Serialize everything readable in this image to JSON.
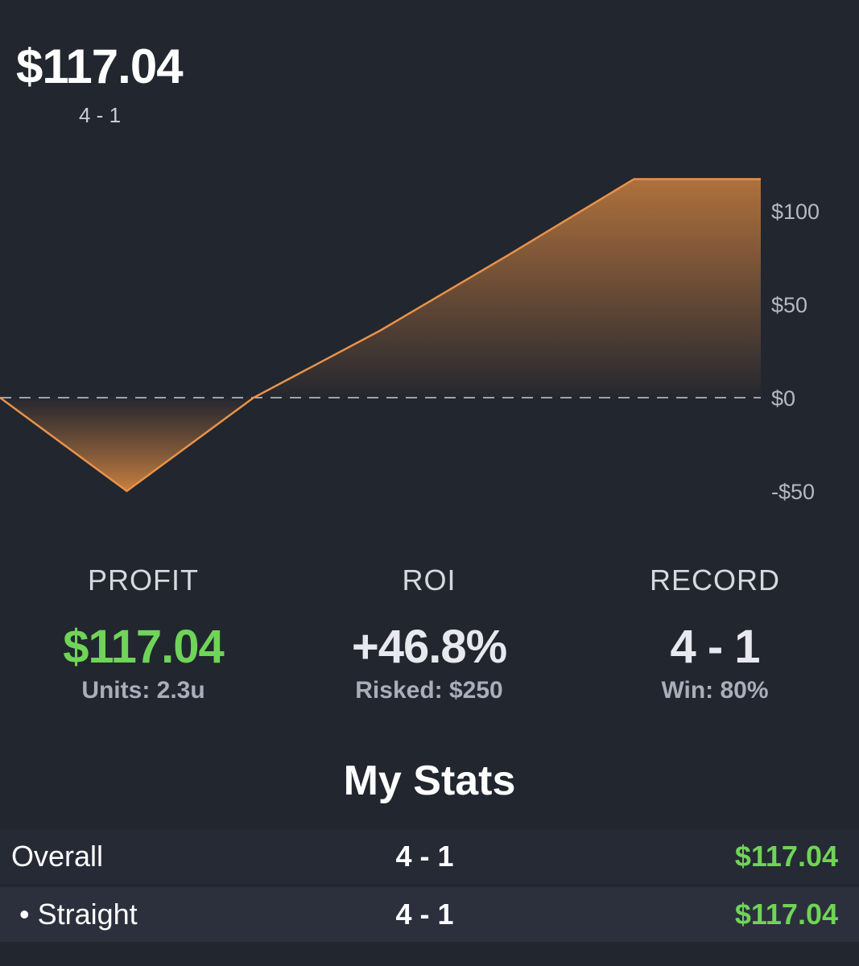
{
  "header": {
    "amount": "$117.04",
    "record": "4 - 1"
  },
  "chart_data": {
    "type": "area",
    "x": [
      0,
      1,
      2,
      3,
      4,
      5,
      6
    ],
    "values": [
      0,
      -50,
      0,
      36,
      76,
      117.04,
      117.04
    ],
    "ylim": [
      -50,
      117.04
    ],
    "yticks": [
      {
        "v": 100,
        "label": "$100"
      },
      {
        "v": 50,
        "label": "$50"
      },
      {
        "v": 0,
        "label": "$0"
      },
      {
        "v": -50,
        "label": "-$50"
      }
    ],
    "zero_line": "dashed",
    "color": "#e8924a",
    "grid": false
  },
  "stats": [
    {
      "label": "PROFIT",
      "value": "$117.04",
      "sub": "Units: 2.3u"
    },
    {
      "label": "ROI",
      "value": "+46.8%",
      "sub": "Risked: $250"
    },
    {
      "label": "RECORD",
      "value": "4 - 1",
      "sub": "Win: 80%"
    }
  ],
  "my_stats": {
    "title": "My Stats",
    "rows": [
      {
        "name": "Overall",
        "record": "4 - 1",
        "amount": "$117.04"
      },
      {
        "name": "• Straight",
        "record": "4 - 1",
        "amount": "$117.04"
      }
    ]
  },
  "colors": {
    "background": "#22262f",
    "positive": "#6fd457",
    "accent": "#e8924a"
  }
}
